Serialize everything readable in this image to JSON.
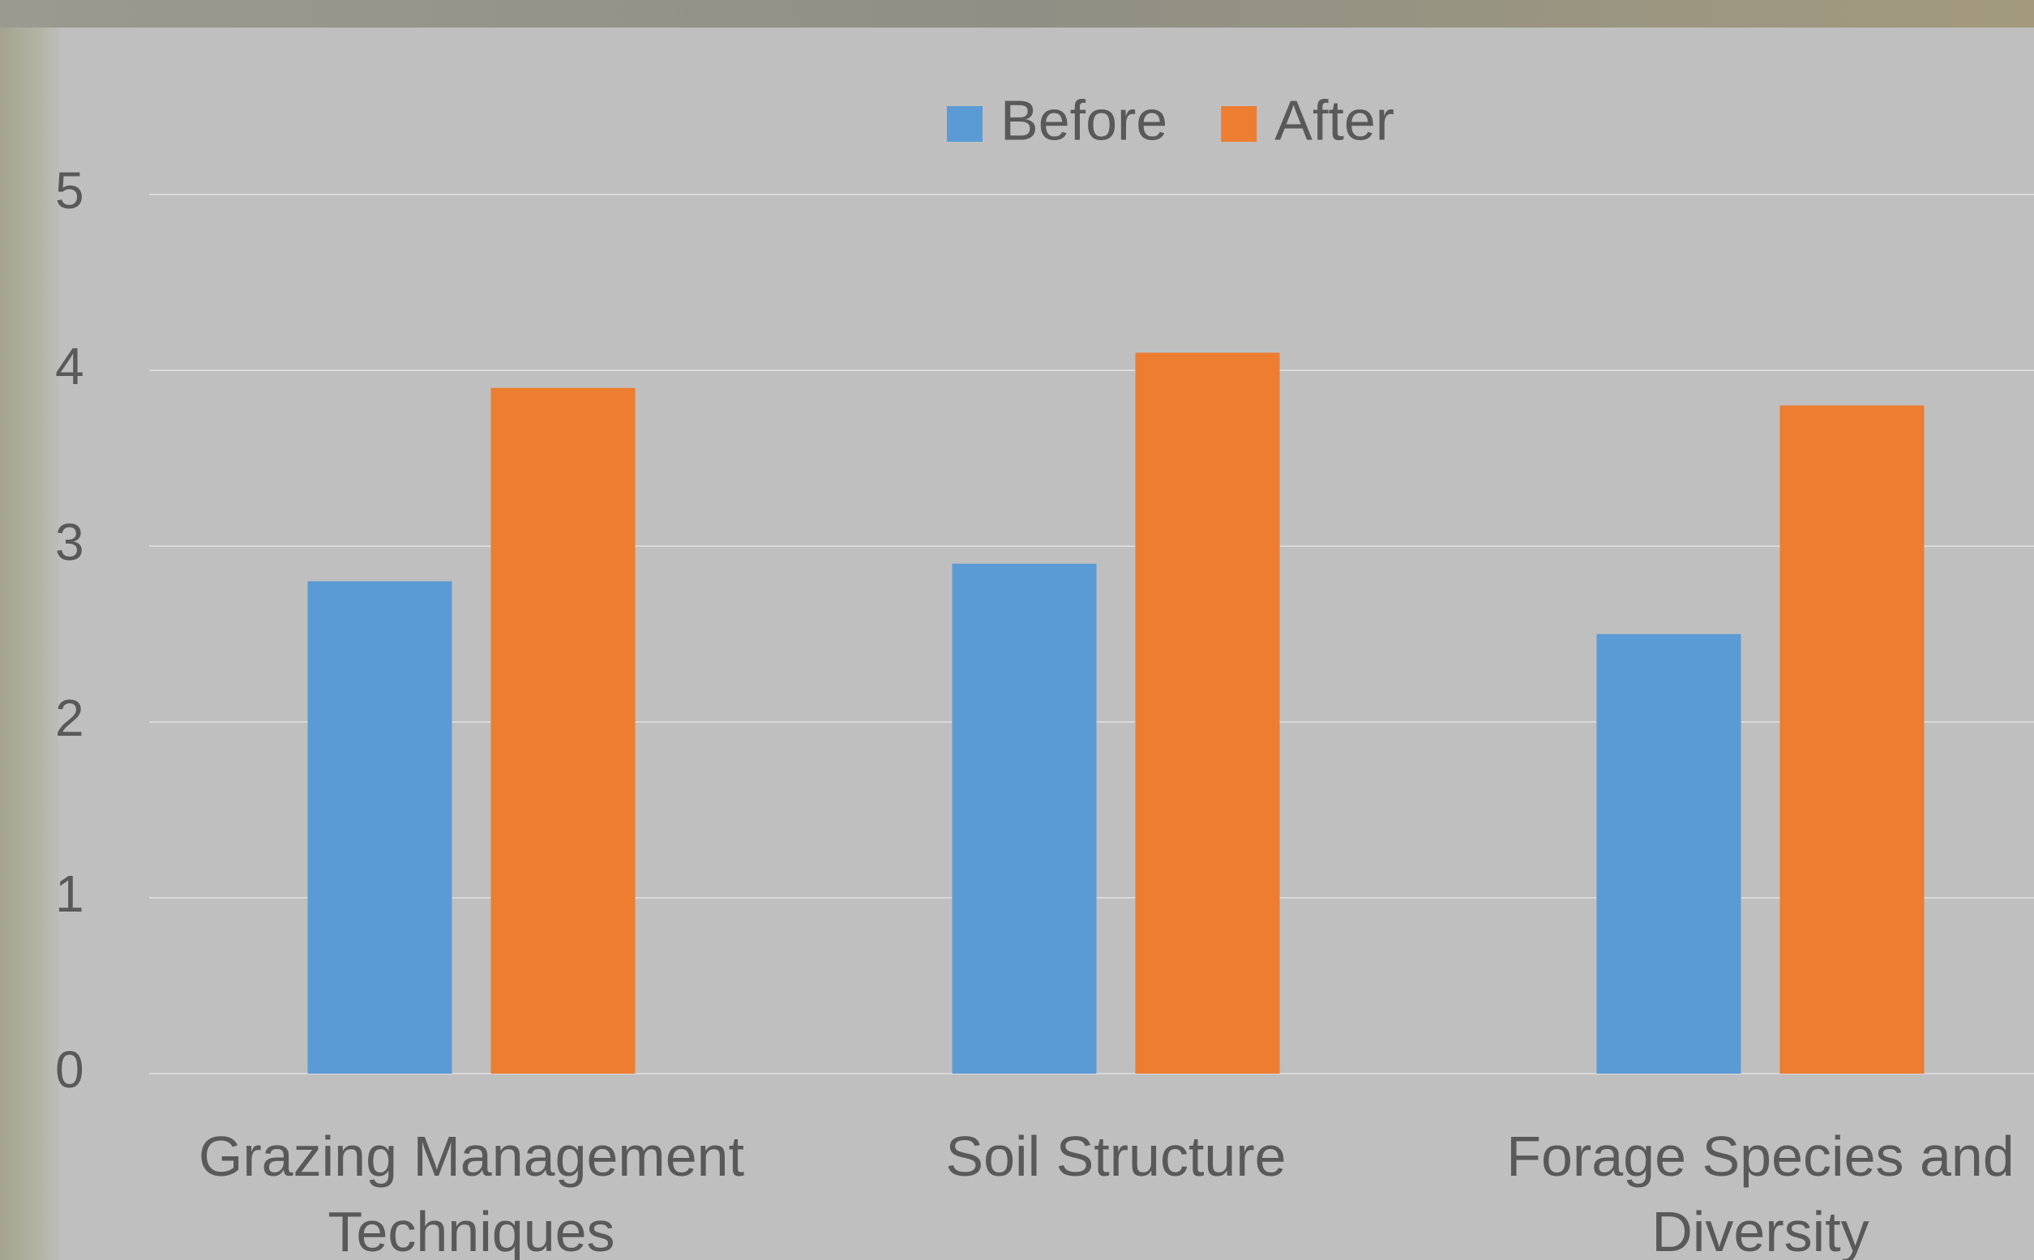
{
  "chart_data": {
    "type": "bar",
    "categories": [
      "Grazing Management Techniques",
      "Soil Structure",
      "Forage Species and Diversity"
    ],
    "series": [
      {
        "name": "Before",
        "color": "#5b9bd5",
        "values": [
          2.8,
          2.9,
          2.5
        ]
      },
      {
        "name": "After",
        "color": "#ed7d31",
        "values": [
          3.9,
          4.1,
          3.8
        ]
      }
    ],
    "ylim": [
      0,
      5
    ],
    "yticks": [
      0,
      1,
      2,
      3,
      4,
      5
    ],
    "grid": true,
    "legend": "top"
  }
}
